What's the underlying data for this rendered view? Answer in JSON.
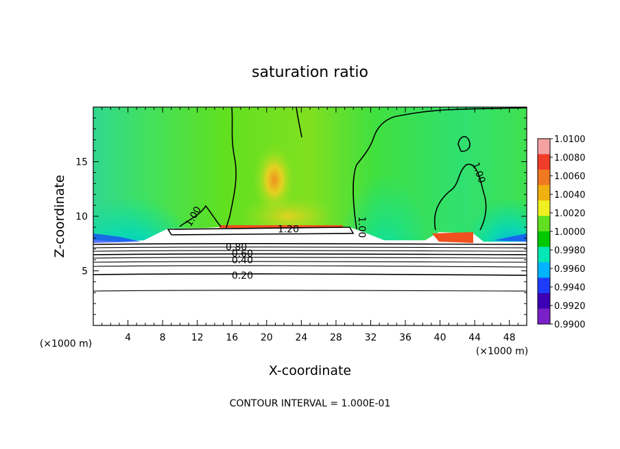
{
  "chart_data": {
    "type": "heatmap",
    "title": "saturation ratio",
    "xlabel": "X-coordinate",
    "ylabel": "Z-coordinate",
    "x_unit_left": "(×1000 m)",
    "x_unit_right": "(×1000 m)",
    "footer": "CONTOUR INTERVAL = 1.000E-01",
    "xlim": [
      0,
      50
    ],
    "ylim": [
      0,
      20
    ],
    "x_ticks": [
      4,
      8,
      12,
      16,
      20,
      24,
      28,
      32,
      36,
      40,
      44,
      48
    ],
    "y_ticks": [
      5,
      10,
      15
    ],
    "colorbar": {
      "labels": [
        "1.0100",
        "1.0080",
        "1.0060",
        "1.0040",
        "1.0020",
        "1.0000",
        "0.9980",
        "0.9960",
        "0.9940",
        "0.9920",
        "0.9900"
      ],
      "colors": [
        "#f4a2a2",
        "#f03c28",
        "#f07820",
        "#f0b010",
        "#f0f020",
        "#60e020",
        "#00c800",
        "#00e6b4",
        "#00b4ff",
        "#1e3cff",
        "#3c00b4",
        "#7a20c8"
      ]
    },
    "contour_labels": [
      {
        "text": "1.20",
        "x": 22.5,
        "z": 8.85
      },
      {
        "text": "0.80",
        "x": 16.5,
        "z": 7.2
      },
      {
        "text": "0.60",
        "x": 17.2,
        "z": 6.6
      },
      {
        "text": "0.40",
        "x": 17.2,
        "z": 6.0
      },
      {
        "text": "0.20",
        "x": 17.2,
        "z": 4.6
      },
      {
        "text": "1.00",
        "x": 11.5,
        "z": 10.0
      },
      {
        "text": "1.00",
        "x": 44.5,
        "z": 14.0
      },
      {
        "text": "1.00",
        "x": 31.0,
        "z": 9.0
      }
    ],
    "flat_contours_z": [
      3.2,
      4.7,
      5.5,
      5.9,
      6.3,
      6.6,
      6.9,
      7.2,
      7.5
    ]
  }
}
